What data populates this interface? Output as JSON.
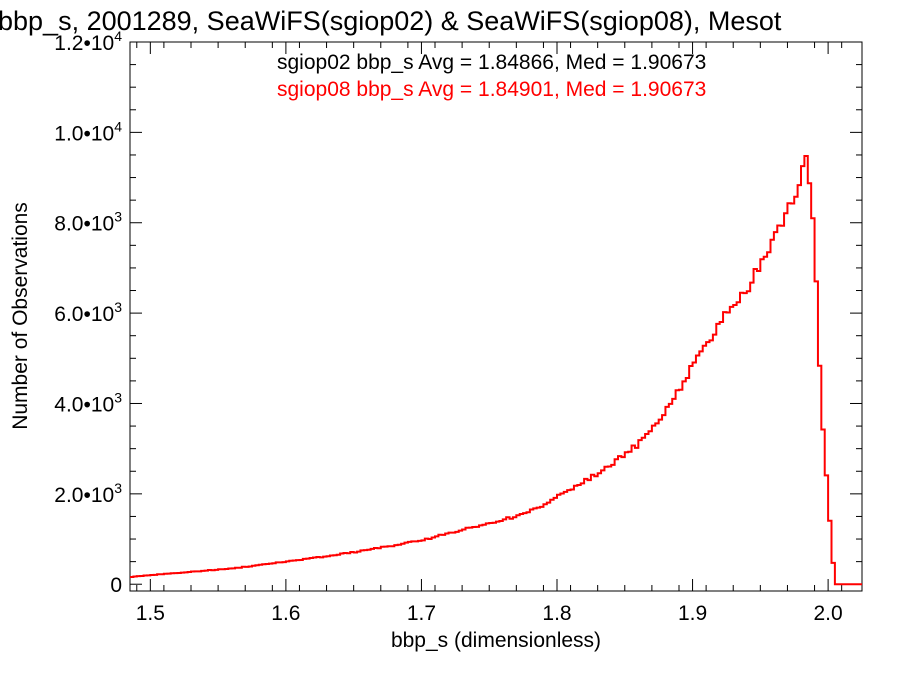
{
  "chart_data": {
    "type": "line",
    "title": "bbp_s, 2001289, SeaWiFS(sgiop02) & SeaWiFS(sgiop08), Mesot",
    "xlabel": "bbp_s (dimensionless)",
    "ylabel": "Number of Observations",
    "xlim": [
      1.485,
      2.025
    ],
    "ylim": [
      -150,
      12000
    ],
    "x_ticks": [
      {
        "value": 1.5,
        "label": "1.5"
      },
      {
        "value": 1.6,
        "label": "1.6"
      },
      {
        "value": 1.7,
        "label": "1.7"
      },
      {
        "value": 1.8,
        "label": "1.8"
      },
      {
        "value": 1.9,
        "label": "1.9"
      },
      {
        "value": 2.0,
        "label": "2.0"
      }
    ],
    "y_ticks": [
      {
        "value": 0,
        "mantissa": "0",
        "exp": ""
      },
      {
        "value": 2000,
        "mantissa": "2.0•10",
        "exp": "3"
      },
      {
        "value": 4000,
        "mantissa": "4.0•10",
        "exp": "3"
      },
      {
        "value": 6000,
        "mantissa": "6.0•10",
        "exp": "3"
      },
      {
        "value": 8000,
        "mantissa": "8.0•10",
        "exp": "3"
      },
      {
        "value": 10000,
        "mantissa": "1.0•10",
        "exp": "4"
      },
      {
        "value": 12000,
        "mantissa": "1.2•10",
        "exp": "4"
      }
    ],
    "grid": false,
    "legend": "top-right",
    "annotations": [
      {
        "text": "sgiop02 bbp_s Avg = 1.84866, Med = 1.90673",
        "color": "#000000"
      },
      {
        "text": "sgiop08 bbp_s Avg = 1.84901, Med = 1.90673",
        "color": "#ff0000"
      }
    ],
    "series": [
      {
        "color": "#ff0000",
        "style": "step",
        "x": [
          1.485,
          1.5,
          1.52,
          1.54,
          1.56,
          1.58,
          1.6,
          1.62,
          1.64,
          1.66,
          1.68,
          1.7,
          1.72,
          1.74,
          1.76,
          1.78,
          1.8,
          1.82,
          1.84,
          1.86,
          1.88,
          1.9,
          1.92,
          1.94,
          1.95,
          1.96,
          1.97,
          1.98,
          1.985,
          1.99,
          1.995,
          2.0,
          2.005,
          2.025
        ],
        "y": [
          160,
          200,
          250,
          300,
          350,
          420,
          500,
          580,
          660,
          760,
          860,
          970,
          1120,
          1280,
          1420,
          1610,
          1920,
          2270,
          2640,
          3100,
          3800,
          4800,
          5800,
          6550,
          7050,
          7600,
          8300,
          9000,
          9500,
          7500,
          4000,
          1900,
          0,
          0
        ]
      }
    ]
  }
}
